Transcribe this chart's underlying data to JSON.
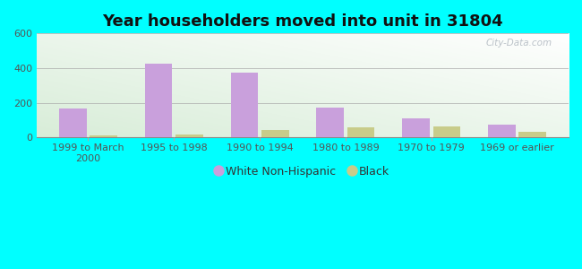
{
  "title": "Year householders moved into unit in 31804",
  "categories": [
    "1999 to March\n2000",
    "1995 to 1998",
    "1990 to 1994",
    "1980 to 1989",
    "1970 to 1979",
    "1969 or earlier"
  ],
  "white_values": [
    165,
    425,
    375,
    175,
    110,
    75
  ],
  "black_values": [
    10,
    20,
    45,
    58,
    62,
    32
  ],
  "white_color": "#c9a0dc",
  "black_color": "#c8cc8a",
  "ylim": [
    0,
    600
  ],
  "yticks": [
    0,
    200,
    400,
    600
  ],
  "background_color": "#00ffff",
  "plot_bg_color1": "#d8edd8",
  "plot_bg_color2": "#ffffff",
  "bar_width": 0.32,
  "title_fontsize": 13,
  "tick_fontsize": 8,
  "legend_fontsize": 9,
  "watermark": "City-Data.com"
}
